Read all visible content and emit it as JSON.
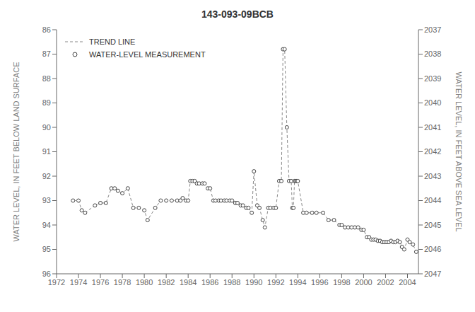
{
  "chart_data": {
    "type": "line",
    "title": "143-093-09BCB",
    "ylabel": "WATER LEVEL, IN FEET BELOW LAND SURFACE",
    "y2label": "WATER LEVEL, IN FEET ABOVE SEA LEVEL",
    "xlim": [
      1972,
      2005
    ],
    "xticks": [
      1972,
      1974,
      1976,
      1978,
      1980,
      1982,
      1984,
      1986,
      1988,
      1990,
      1992,
      1994,
      1996,
      1998,
      2000,
      2002,
      2004
    ],
    "ylim": [
      96,
      86
    ],
    "yticks": [
      86,
      87,
      88,
      89,
      90,
      91,
      92,
      93,
      94,
      95,
      96
    ],
    "y2lim": [
      2047,
      2037
    ],
    "y2ticks": [
      2047,
      2046,
      2045,
      2044,
      2043,
      2042,
      2041,
      2040,
      2039,
      2038,
      2037
    ],
    "grid": false,
    "legend": "upper left",
    "x": [
      1973.5,
      1974.0,
      1974.3,
      1974.6,
      1975.5,
      1976.0,
      1976.5,
      1977.0,
      1977.3,
      1977.6,
      1978.0,
      1978.5,
      1979.0,
      1979.5,
      1980.0,
      1980.3,
      1981.0,
      1981.5,
      1982.0,
      1982.5,
      1983.0,
      1983.3,
      1983.5,
      1983.8,
      1984.0,
      1984.2,
      1984.4,
      1984.6,
      1984.8,
      1985.0,
      1985.3,
      1985.5,
      1985.8,
      1986.0,
      1986.3,
      1986.5,
      1986.8,
      1987.0,
      1987.3,
      1987.5,
      1987.8,
      1988.0,
      1988.3,
      1988.5,
      1988.8,
      1989.0,
      1989.3,
      1989.5,
      1989.8,
      1990.0,
      1990.3,
      1990.5,
      1990.8,
      1991.0,
      1991.3,
      1991.5,
      1991.8,
      1992.0,
      1992.3,
      1992.5,
      1992.65,
      1992.8,
      1993.0,
      1993.2,
      1993.4,
      1993.5,
      1993.6,
      1993.7,
      1993.8,
      1993.9,
      1994.0,
      1994.5,
      1994.8,
      1995.3,
      1995.7,
      1996.3,
      1996.8,
      1997.3,
      1997.8,
      1998.0,
      1998.3,
      1998.6,
      1998.9,
      1999.2,
      1999.5,
      1999.8,
      2000.0,
      2000.3,
      2000.5,
      2000.7,
      2000.9,
      2001.1,
      2001.3,
      2001.5,
      2001.7,
      2001.9,
      2002.1,
      2002.3,
      2002.5,
      2002.7,
      2002.9,
      2003.1,
      2003.3,
      2003.5,
      2003.7,
      2004.0,
      2004.2,
      2004.5,
      2004.8
    ],
    "series": [
      {
        "name": "TREND LINE",
        "type": "line",
        "line_style": "dashed",
        "color": "#888888",
        "values": [
          93.0,
          93.0,
          93.4,
          93.5,
          93.2,
          93.1,
          93.1,
          92.5,
          92.5,
          92.6,
          92.7,
          92.5,
          93.3,
          93.3,
          93.4,
          93.8,
          93.3,
          93.0,
          93.0,
          93.0,
          93.0,
          93.0,
          92.9,
          93.0,
          93.0,
          92.2,
          92.2,
          92.2,
          92.3,
          92.3,
          92.3,
          92.3,
          92.5,
          92.5,
          93.0,
          93.0,
          93.0,
          93.0,
          93.0,
          93.0,
          93.0,
          93.0,
          93.1,
          93.1,
          93.2,
          93.2,
          93.3,
          93.3,
          93.5,
          91.8,
          93.2,
          93.3,
          93.8,
          94.1,
          93.3,
          93.3,
          93.3,
          93.3,
          92.2,
          92.2,
          86.8,
          86.8,
          90.0,
          92.2,
          92.2,
          93.3,
          93.3,
          92.2,
          92.2,
          92.2,
          92.2,
          93.5,
          93.5,
          93.5,
          93.5,
          93.5,
          93.8,
          93.8,
          94.0,
          94.0,
          94.1,
          94.1,
          94.1,
          94.1,
          94.1,
          94.2,
          94.2,
          94.5,
          94.5,
          94.6,
          94.6,
          94.6,
          94.65,
          94.65,
          94.7,
          94.7,
          94.7,
          94.7,
          94.65,
          94.7,
          94.7,
          94.65,
          94.7,
          94.9,
          95.0,
          94.6,
          94.7,
          94.8,
          95.1
        ]
      },
      {
        "name": "WATER-LEVEL MEASUREMENT",
        "type": "scatter",
        "marker": "circle",
        "color": "#444444",
        "values": [
          93.0,
          93.0,
          93.4,
          93.5,
          93.2,
          93.1,
          93.1,
          92.5,
          92.5,
          92.6,
          92.7,
          92.5,
          93.3,
          93.3,
          93.4,
          93.8,
          93.3,
          93.0,
          93.0,
          93.0,
          93.0,
          93.0,
          92.9,
          93.0,
          93.0,
          92.2,
          92.2,
          92.2,
          92.3,
          92.3,
          92.3,
          92.3,
          92.5,
          92.5,
          93.0,
          93.0,
          93.0,
          93.0,
          93.0,
          93.0,
          93.0,
          93.0,
          93.1,
          93.1,
          93.2,
          93.2,
          93.3,
          93.3,
          93.5,
          91.8,
          93.2,
          93.3,
          93.8,
          94.1,
          93.3,
          93.3,
          93.3,
          93.3,
          92.2,
          92.2,
          86.8,
          86.8,
          90.0,
          92.2,
          92.2,
          93.3,
          93.3,
          92.2,
          92.2,
          92.2,
          92.2,
          93.5,
          93.5,
          93.5,
          93.5,
          93.5,
          93.8,
          93.8,
          94.0,
          94.0,
          94.1,
          94.1,
          94.1,
          94.1,
          94.1,
          94.2,
          94.2,
          94.5,
          94.5,
          94.6,
          94.6,
          94.6,
          94.65,
          94.65,
          94.7,
          94.7,
          94.7,
          94.7,
          94.65,
          94.7,
          94.7,
          94.65,
          94.7,
          94.9,
          95.0,
          94.6,
          94.7,
          94.8,
          95.1
        ]
      }
    ]
  }
}
